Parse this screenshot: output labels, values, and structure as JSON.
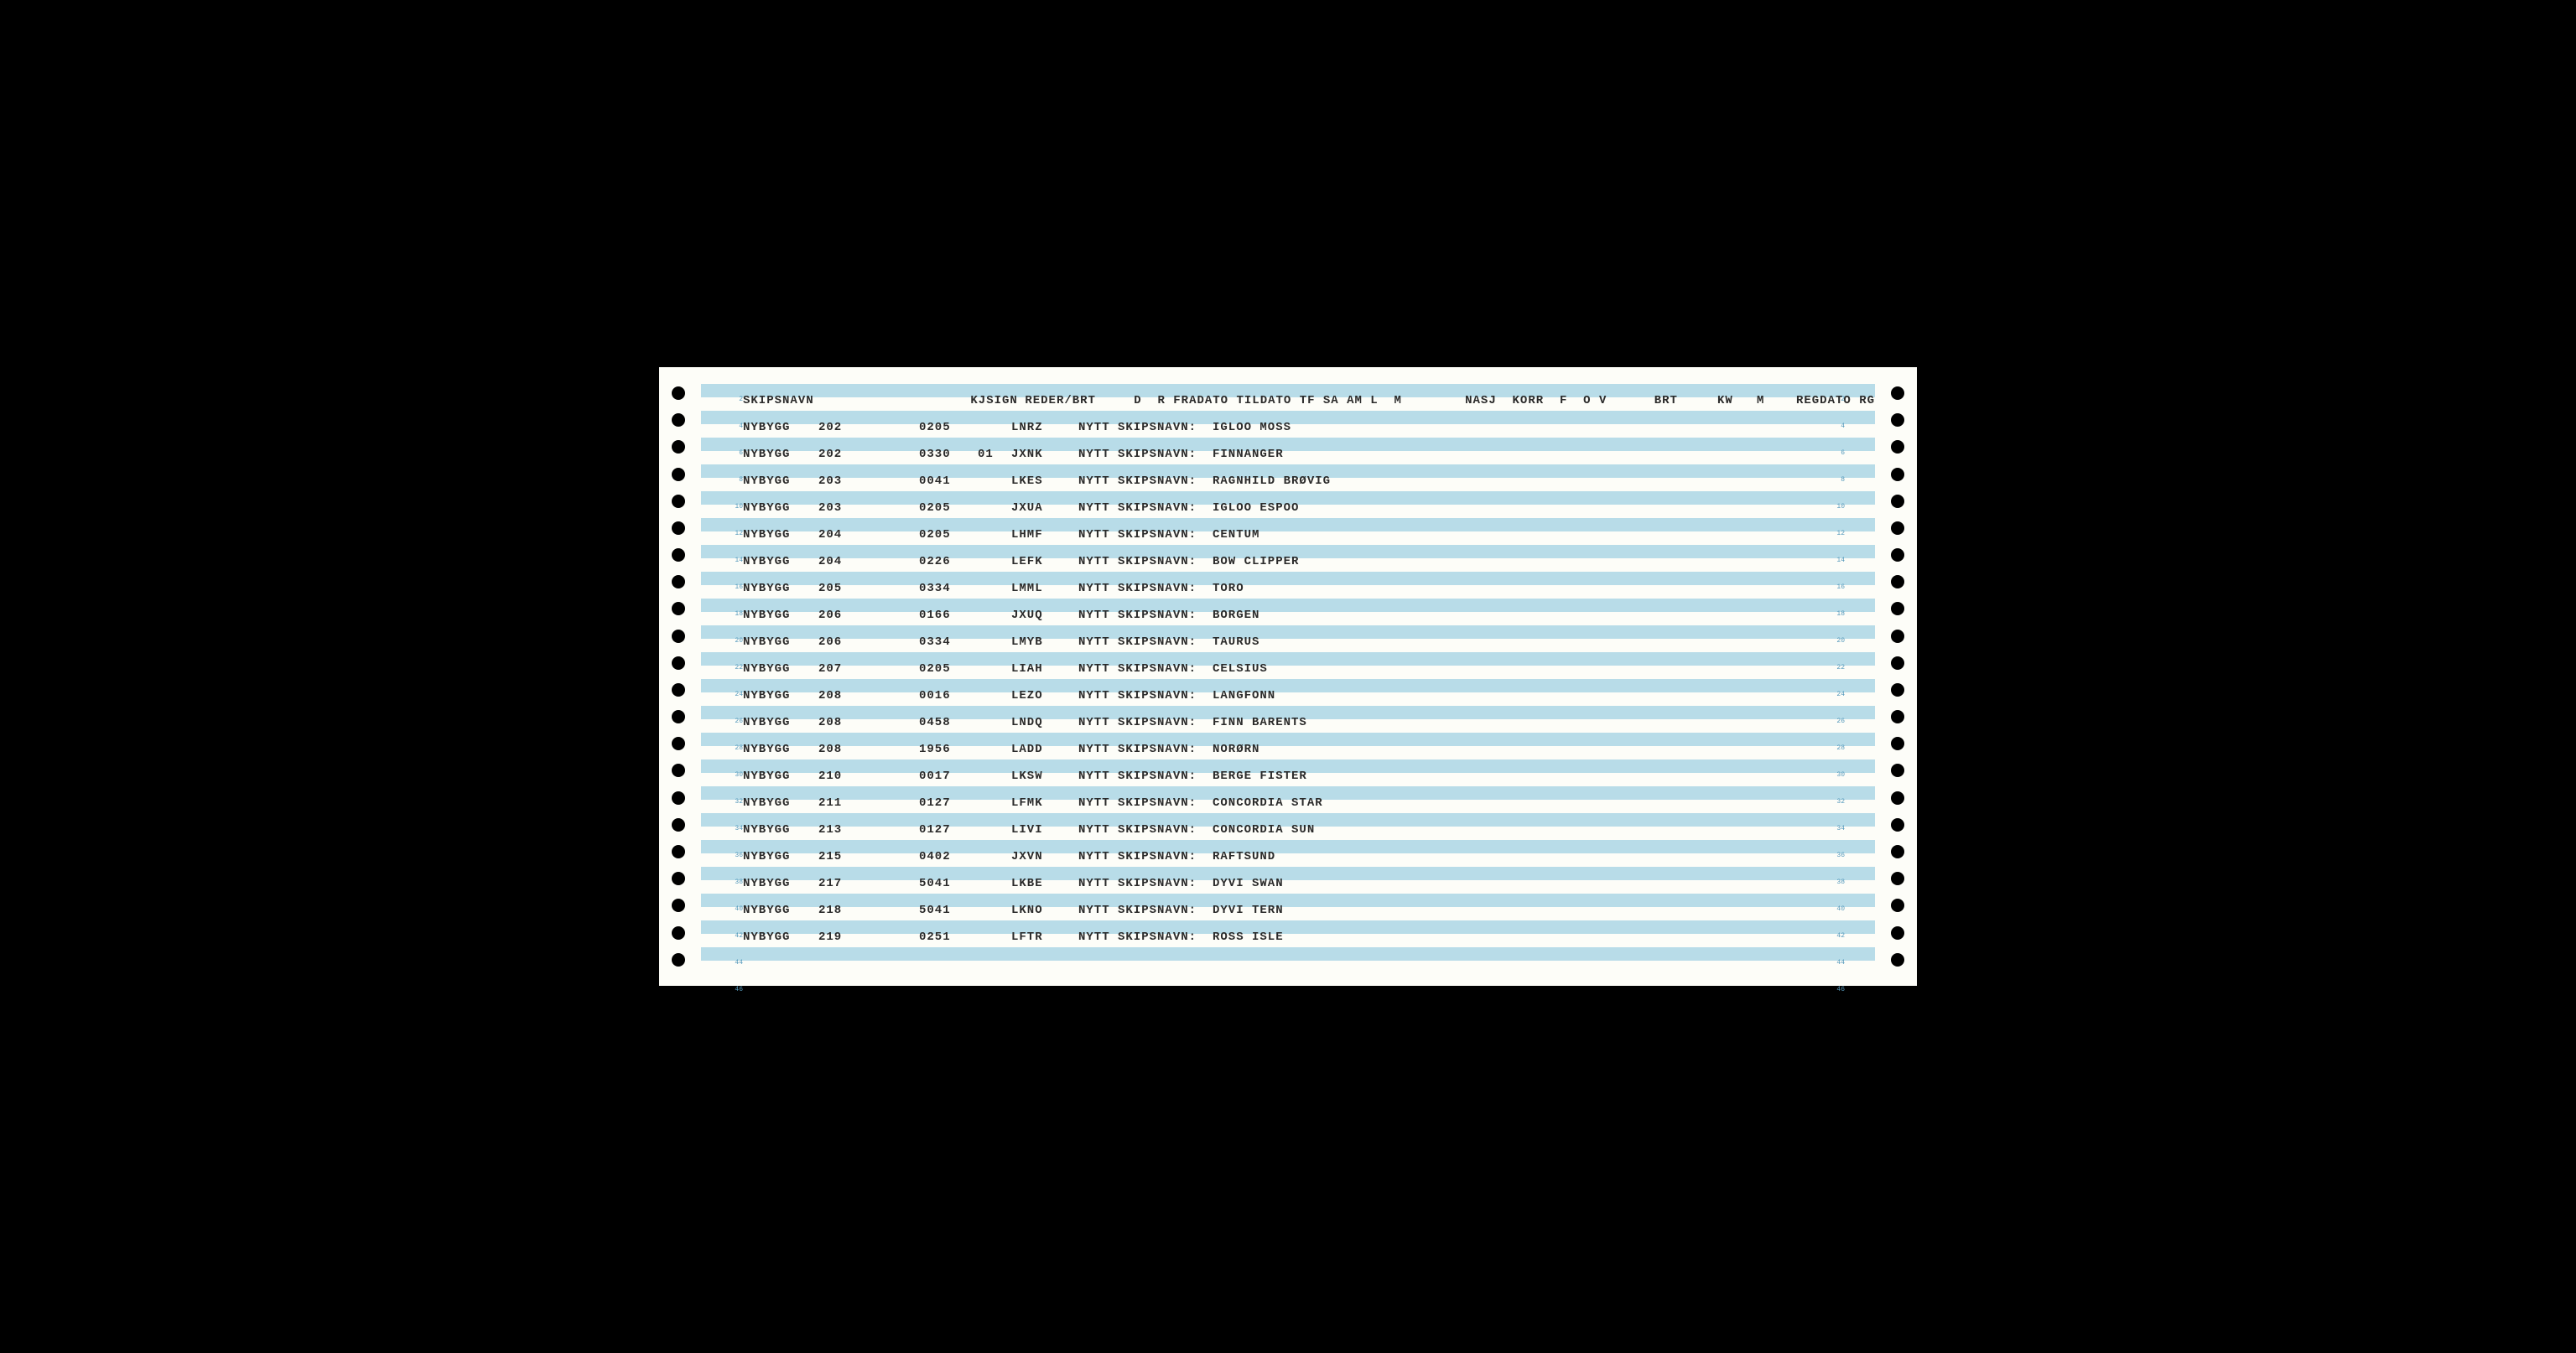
{
  "header": {
    "skipsnavn": "SKIPSNAVN",
    "kjsign": "KJSIGN",
    "reder": "REDER/BRT",
    "rest": "D  R FRADATO TILDATO TF SA AM L  M        NASJ  KORR  F  O V      BRT     KW   M    REGDATO RG"
  },
  "label": "NYTT SKIPSNAVN:",
  "rows": [
    {
      "skip": "NYBYGG",
      "num": "202",
      "code": "0205",
      "sub": "",
      "kj": "LNRZ",
      "val": "IGLOO MOSS"
    },
    {
      "skip": "NYBYGG",
      "num": "202",
      "code": "0330",
      "sub": "01",
      "kj": "JXNK",
      "val": "FINNANGER"
    },
    {
      "skip": "NYBYGG",
      "num": "203",
      "code": "0041",
      "sub": "",
      "kj": "LKES",
      "val": "RAGNHILD BRØVIG"
    },
    {
      "skip": "NYBYGG",
      "num": "203",
      "code": "0205",
      "sub": "",
      "kj": "JXUA",
      "val": "IGLOO ESPOO"
    },
    {
      "skip": "NYBYGG",
      "num": "204",
      "code": "0205",
      "sub": "",
      "kj": "LHMF",
      "val": "CENTUM"
    },
    {
      "skip": "NYBYGG",
      "num": "204",
      "code": "0226",
      "sub": "",
      "kj": "LEFK",
      "val": "BOW CLIPPER"
    },
    {
      "skip": "NYBYGG",
      "num": "205",
      "code": "0334",
      "sub": "",
      "kj": "LMML",
      "val": "TORO"
    },
    {
      "skip": "NYBYGG",
      "num": "206",
      "code": "0166",
      "sub": "",
      "kj": "JXUQ",
      "val": "BORGEN"
    },
    {
      "skip": "NYBYGG",
      "num": "206",
      "code": "0334",
      "sub": "",
      "kj": "LMYB",
      "val": "TAURUS"
    },
    {
      "skip": "NYBYGG",
      "num": "207",
      "code": "0205",
      "sub": "",
      "kj": "LIAH",
      "val": "CELSIUS"
    },
    {
      "skip": "NYBYGG",
      "num": "208",
      "code": "0016",
      "sub": "",
      "kj": "LEZO",
      "val": "LANGFONN"
    },
    {
      "skip": "NYBYGG",
      "num": "208",
      "code": "0458",
      "sub": "",
      "kj": "LNDQ",
      "val": "FINN BARENTS"
    },
    {
      "skip": "NYBYGG",
      "num": "208",
      "code": "1956",
      "sub": "",
      "kj": "LADD",
      "val": "NORØRN"
    },
    {
      "skip": "NYBYGG",
      "num": "210",
      "code": "0017",
      "sub": "",
      "kj": "LKSW",
      "val": "BERGE FISTER"
    },
    {
      "skip": "NYBYGG",
      "num": "211",
      "code": "0127",
      "sub": "",
      "kj": "LFMK",
      "val": "CONCORDIA STAR"
    },
    {
      "skip": "NYBYGG",
      "num": "213",
      "code": "0127",
      "sub": "",
      "kj": "LIVI",
      "val": "CONCORDIA SUN"
    },
    {
      "skip": "NYBYGG",
      "num": "215",
      "code": "0402",
      "sub": "",
      "kj": "JXVN",
      "val": "RAFTSUND"
    },
    {
      "skip": "NYBYGG",
      "num": "217",
      "code": "5041",
      "sub": "",
      "kj": "LKBE",
      "val": "DYVI SWAN"
    },
    {
      "skip": "NYBYGG",
      "num": "218",
      "code": "5041",
      "sub": "",
      "kj": "LKNO",
      "val": "DYVI TERN"
    },
    {
      "skip": "NYBYGG",
      "num": "219",
      "code": "0251",
      "sub": "",
      "kj": "LFTR",
      "val": "ROSS ISLE"
    }
  ],
  "colors": {
    "stripe": "#b8dce8",
    "paper": "#fdfdf8",
    "text": "#2a2a2a",
    "linenum": "#5599bb"
  },
  "holeCount": 22,
  "lineNumbers": [
    2,
    4,
    6,
    8,
    10,
    12,
    14,
    16,
    18,
    20,
    22,
    24,
    26,
    28,
    30,
    32,
    34,
    36,
    38,
    40,
    42,
    44,
    46
  ]
}
